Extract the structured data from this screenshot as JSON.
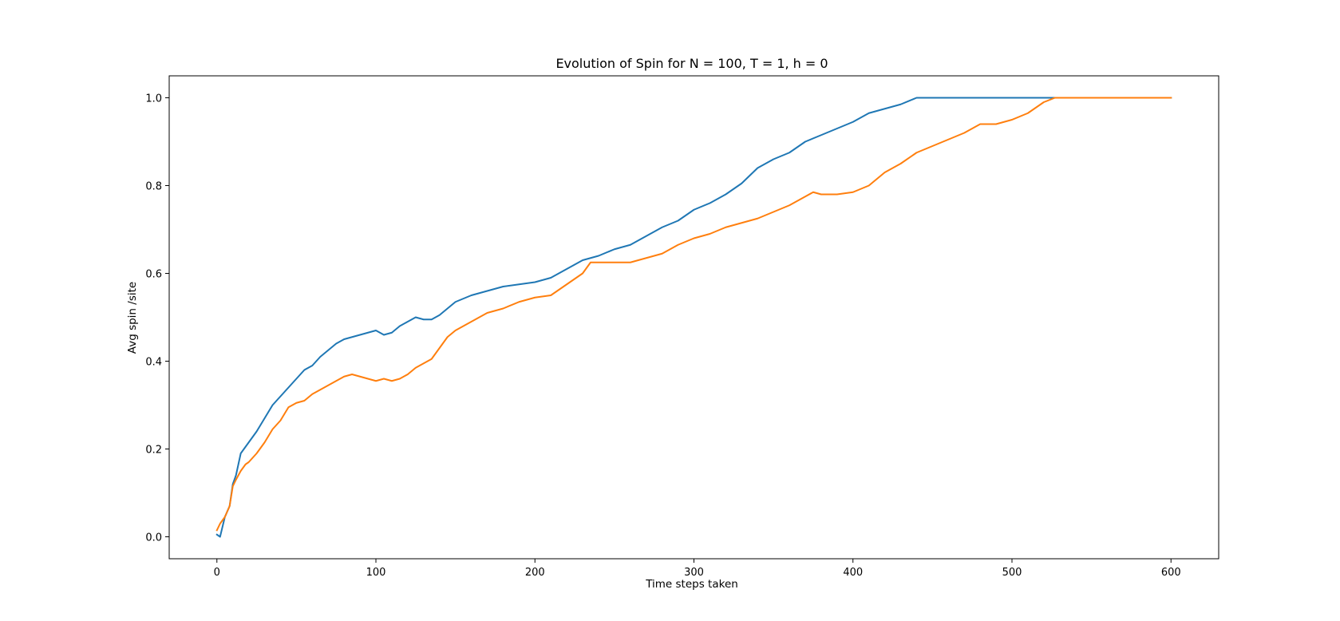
{
  "chart_data": {
    "type": "line",
    "title": "Evolution of Spin for N = 100, T = 1, h = 0",
    "xlabel": "Time steps taken",
    "ylabel": "Avg spin /site",
    "xlim": [
      -30,
      630
    ],
    "ylim": [
      -0.05,
      1.05
    ],
    "xticks": [
      0,
      100,
      200,
      300,
      400,
      500,
      600
    ],
    "xtick_labels": [
      "0",
      "100",
      "200",
      "300",
      "400",
      "500",
      "600"
    ],
    "yticks": [
      0.0,
      0.2,
      0.4,
      0.6,
      0.8,
      1.0
    ],
    "ytick_labels": [
      "0.0",
      "0.2",
      "0.4",
      "0.6",
      "0.8",
      "1.0"
    ],
    "grid": false,
    "legend": "none",
    "series": [
      {
        "color": "#1f77b4",
        "x": [
          0,
          2,
          5,
          8,
          10,
          12,
          15,
          18,
          20,
          25,
          30,
          35,
          40,
          45,
          50,
          55,
          60,
          65,
          70,
          75,
          80,
          85,
          90,
          95,
          100,
          105,
          110,
          115,
          120,
          125,
          130,
          135,
          140,
          145,
          150,
          160,
          170,
          180,
          190,
          200,
          210,
          220,
          230,
          240,
          250,
          260,
          270,
          280,
          290,
          300,
          310,
          320,
          330,
          340,
          350,
          360,
          370,
          380,
          390,
          400,
          410,
          420,
          430,
          440,
          443,
          460,
          480,
          500,
          520,
          540,
          560,
          580,
          600
        ],
        "y": [
          0.005,
          0.0,
          0.045,
          0.07,
          0.12,
          0.14,
          0.19,
          0.205,
          0.215,
          0.24,
          0.27,
          0.3,
          0.32,
          0.34,
          0.36,
          0.38,
          0.39,
          0.41,
          0.425,
          0.44,
          0.45,
          0.455,
          0.46,
          0.465,
          0.47,
          0.46,
          0.465,
          0.48,
          0.49,
          0.5,
          0.495,
          0.495,
          0.505,
          0.52,
          0.535,
          0.55,
          0.56,
          0.57,
          0.575,
          0.58,
          0.59,
          0.61,
          0.63,
          0.64,
          0.655,
          0.665,
          0.685,
          0.705,
          0.72,
          0.745,
          0.76,
          0.78,
          0.805,
          0.84,
          0.86,
          0.875,
          0.9,
          0.915,
          0.93,
          0.945,
          0.965,
          0.975,
          0.985,
          1.0,
          1.0,
          1.0,
          1.0,
          1.0,
          1.0,
          1.0,
          1.0,
          1.0,
          1.0
        ]
      },
      {
        "color": "#ff7f0e",
        "x": [
          0,
          2,
          5,
          8,
          10,
          12,
          15,
          18,
          20,
          25,
          30,
          35,
          40,
          45,
          50,
          55,
          60,
          65,
          70,
          75,
          80,
          85,
          90,
          95,
          100,
          105,
          110,
          115,
          120,
          125,
          130,
          135,
          140,
          145,
          150,
          160,
          170,
          180,
          190,
          200,
          210,
          220,
          230,
          235,
          240,
          250,
          260,
          270,
          280,
          290,
          300,
          310,
          320,
          330,
          340,
          350,
          360,
          370,
          375,
          380,
          390,
          400,
          410,
          420,
          430,
          440,
          450,
          460,
          470,
          480,
          490,
          500,
          510,
          520,
          527,
          540,
          560,
          580,
          600
        ],
        "y": [
          0.015,
          0.03,
          0.045,
          0.07,
          0.115,
          0.13,
          0.15,
          0.165,
          0.17,
          0.19,
          0.215,
          0.245,
          0.265,
          0.295,
          0.305,
          0.31,
          0.325,
          0.335,
          0.345,
          0.355,
          0.365,
          0.37,
          0.365,
          0.36,
          0.355,
          0.36,
          0.355,
          0.36,
          0.37,
          0.385,
          0.395,
          0.405,
          0.43,
          0.455,
          0.47,
          0.49,
          0.51,
          0.52,
          0.535,
          0.545,
          0.55,
          0.575,
          0.6,
          0.625,
          0.625,
          0.625,
          0.625,
          0.635,
          0.645,
          0.665,
          0.68,
          0.69,
          0.705,
          0.715,
          0.725,
          0.74,
          0.755,
          0.775,
          0.785,
          0.78,
          0.78,
          0.785,
          0.8,
          0.83,
          0.85,
          0.875,
          0.89,
          0.905,
          0.92,
          0.94,
          0.94,
          0.95,
          0.965,
          0.99,
          1.0,
          1.0,
          1.0,
          1.0,
          1.0
        ]
      }
    ]
  }
}
